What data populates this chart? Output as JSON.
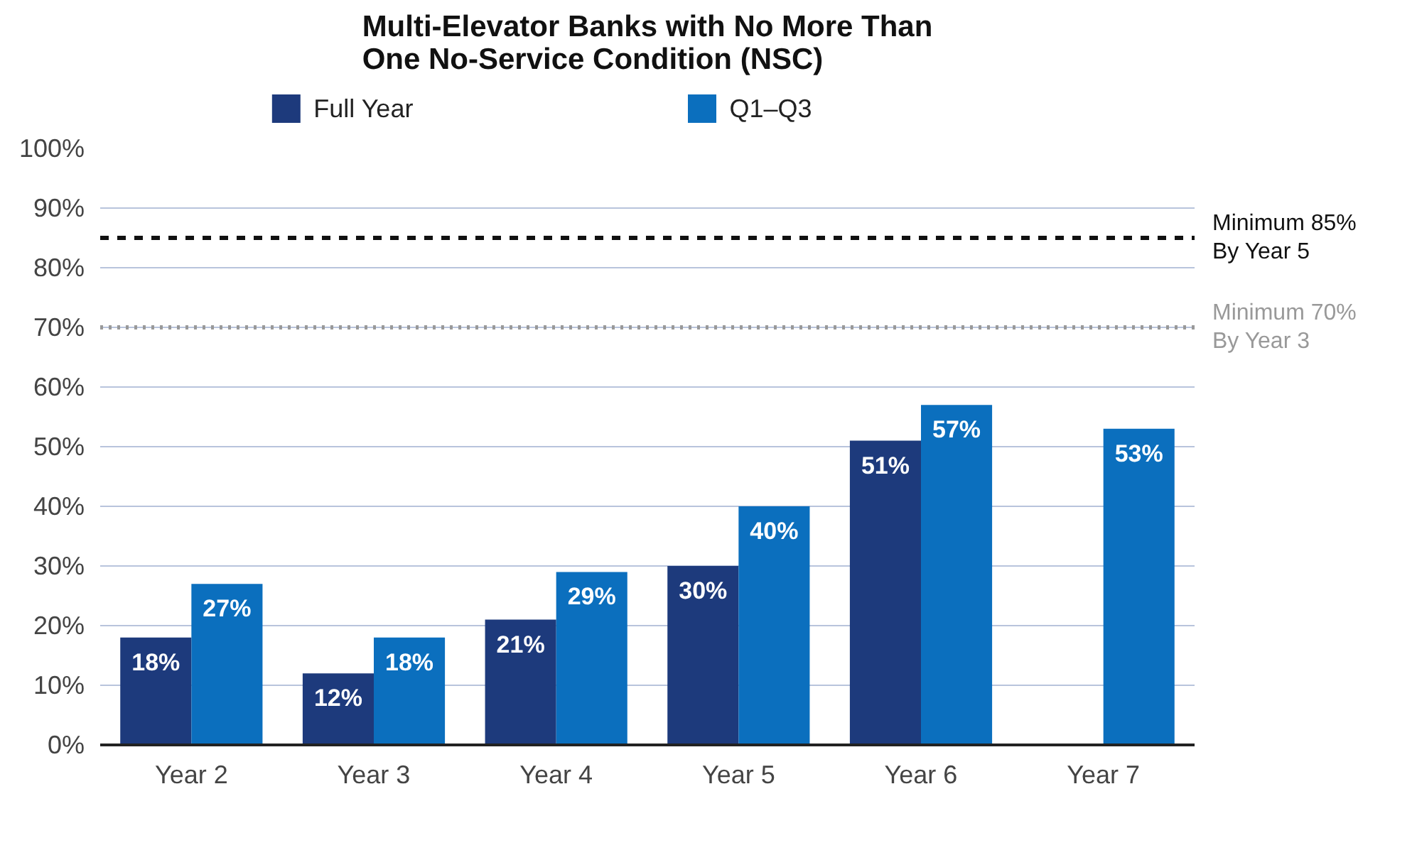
{
  "chart_data": {
    "type": "bar",
    "title": "Multi-Elevator Banks with No More Than\nOne No-Service Condition (NSC)",
    "categories": [
      "Year 2",
      "Year 3",
      "Year 4",
      "Year 5",
      "Year 6",
      "Year 7"
    ],
    "series": [
      {
        "name": "Full Year",
        "color": "#1d3a7c",
        "values": [
          18,
          12,
          21,
          30,
          51,
          null
        ],
        "value_labels": [
          "18%",
          "12%",
          "21%",
          "30%",
          "51%",
          null
        ]
      },
      {
        "name": "Q1–Q3",
        "color": "#0b6fbe",
        "values": [
          27,
          18,
          29,
          40,
          57,
          53
        ],
        "value_labels": [
          "27%",
          "18%",
          "29%",
          "40%",
          "57%",
          "53%"
        ]
      }
    ],
    "ylim": [
      0,
      100
    ],
    "yticks": [
      {
        "value": 0,
        "label": "0%"
      },
      {
        "value": 10,
        "label": "10%"
      },
      {
        "value": 20,
        "label": "20%"
      },
      {
        "value": 30,
        "label": "30%"
      },
      {
        "value": 40,
        "label": "40%"
      },
      {
        "value": 50,
        "label": "50%"
      },
      {
        "value": 60,
        "label": "60%"
      },
      {
        "value": 70,
        "label": "70%"
      },
      {
        "value": 80,
        "label": "80%"
      },
      {
        "value": 90,
        "label": "90%"
      },
      {
        "value": 100,
        "label": "100%"
      }
    ],
    "ref_lines": [
      {
        "axis": "y",
        "value": 85,
        "label": "Minimum 85%\nBy Year 5",
        "color": "#111111",
        "line_style": "dashed"
      },
      {
        "axis": "y",
        "value": 70,
        "label": "Minimum 70%\nBy Year 3",
        "color": "#999999",
        "line_style": "dotted"
      }
    ],
    "grid": "y",
    "legend": "top"
  }
}
